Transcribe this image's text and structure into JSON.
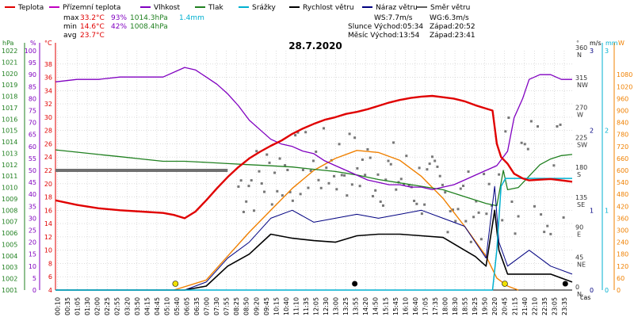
{
  "legend": [
    {
      "label": "Teplota",
      "color": "#e00000"
    },
    {
      "label": "Přízemní teplota",
      "color": "#c000c0"
    },
    {
      "label": "Vlhkost",
      "color": "#8000c0"
    },
    {
      "label": "Tlak",
      "color": "#208020"
    },
    {
      "label": "Srážky",
      "color": "#00b0d0"
    },
    {
      "label": "Rychlost větru",
      "color": "#000000"
    },
    {
      "label": "Náraz větru",
      "color": "#000080"
    },
    {
      "label": "Směr větru",
      "color": "#606060"
    }
  ],
  "stats": {
    "max_label": "max",
    "min_label": "min",
    "avg_label": "avg",
    "max_temp": "33.2°C",
    "max_hum": "93%",
    "max_press": "1014.3hPa",
    "max_rain": "1.4mm",
    "min_temp": "14.6°C",
    "min_hum": "42%",
    "min_press": "1008.4hPa",
    "avg_temp": "23.7°C"
  },
  "wind_info": {
    "ws": "WS:7.7m/s",
    "wg": "WG:6.3m/s"
  },
  "astro": {
    "sun_rise": "Slunce Východ:05:34",
    "sun_set": "Západ:20:52",
    "moon_rise": "Měsíc  Východ:13:54",
    "moon_set": "Západ:23:41"
  },
  "date": "28.7.2020",
  "axis_labels": {
    "hpa": "hPa",
    "pct": "%",
    "degc": "°C",
    "deg": "°",
    "ms": "m/s",
    "mm": "mm",
    "wm2": "W",
    "time": "čas"
  },
  "colors": {
    "temp": "#e00000",
    "dew": "#c000c0",
    "hum": "#8000c0",
    "press": "#208020",
    "rain": "#00b0d0",
    "wind": "#000000",
    "gust": "#000080",
    "dir": "#707070",
    "solar": "#f08000",
    "grid": "#c8c8c8"
  },
  "chart_data": {
    "type": "line",
    "x_unit": "time (HH:MM), 28.7.2020",
    "x_ticks": [
      "00:10",
      "00:35",
      "01:05",
      "01:30",
      "02:00",
      "02:25",
      "02:55",
      "03:20",
      "03:50",
      "04:15",
      "04:45",
      "05:10",
      "05:40",
      "06:05",
      "06:35",
      "07:00",
      "07:30",
      "07:55",
      "08:25",
      "08:50",
      "09:20",
      "09:45",
      "10:15",
      "10:40",
      "11:10",
      "11:35",
      "12:05",
      "12:30",
      "13:00",
      "13:25",
      "13:55",
      "14:20",
      "14:50",
      "15:15",
      "15:45",
      "16:10",
      "16:40",
      "17:05",
      "17:35",
      "18:00",
      "18:30",
      "18:55",
      "19:25",
      "19:50",
      "20:20",
      "20:45",
      "21:15",
      "21:40",
      "22:10",
      "22:35",
      "23:05",
      "23:35"
    ],
    "axes": {
      "pressure_hpa": {
        "min": 1001,
        "max": 1022,
        "ticks": [
          "1001",
          "1002",
          "1003",
          "1004",
          "1005",
          "1006",
          "1007",
          "1008",
          "1009",
          "1010",
          "1011",
          "1012",
          "1013",
          "1014",
          "1015",
          "1016",
          "1017",
          "1018",
          "1019",
          "1020",
          "1021",
          "1022"
        ]
      },
      "humidity_pct": {
        "min": 0,
        "max": 100,
        "ticks": [
          "0",
          "5",
          "10",
          "15",
          "20",
          "25",
          "30",
          "35",
          "40",
          "45",
          "50",
          "55",
          "60",
          "65",
          "70",
          "75",
          "80",
          "85",
          "90",
          "95",
          "100"
        ]
      },
      "temp_c": {
        "min": 4,
        "max": 40,
        "ticks": [
          "4",
          "6",
          "8",
          "10",
          "12",
          "14",
          "16",
          "18",
          "20",
          "22",
          "24",
          "26",
          "28",
          "30",
          "32",
          "34",
          "36",
          "38"
        ]
      },
      "dir_deg": {
        "min": 0,
        "max": 360,
        "ticks": [
          "0",
          "45",
          "90",
          "135",
          "180",
          "225",
          "270",
          "315",
          "360"
        ],
        "labels": [
          "N",
          "NE",
          "E",
          "SE",
          "S",
          "SW",
          "W",
          "NW",
          "N"
        ]
      },
      "wind_ms": {
        "min": 0,
        "max": 3,
        "ticks": [
          "0",
          "1",
          "2",
          "3"
        ]
      },
      "rain_mm": {
        "min": 0,
        "max": 3,
        "ticks": [
          "0",
          "1",
          "2",
          "3"
        ]
      },
      "solar_w": {
        "min": 0,
        "max": 1200,
        "ticks": [
          "0",
          "60",
          "120",
          "180",
          "240",
          "300",
          "360",
          "420",
          "480",
          "540",
          "600",
          "660",
          "720",
          "780",
          "840",
          "900",
          "960",
          "1020",
          "1080"
        ]
      }
    },
    "series": [
      {
        "name": "Teplota",
        "unit": "°C",
        "points": [
          [
            0,
            17.5
          ],
          [
            1,
            16.8
          ],
          [
            2,
            16.3
          ],
          [
            3,
            16.0
          ],
          [
            4,
            15.8
          ],
          [
            5,
            15.6
          ],
          [
            5.5,
            15.3
          ],
          [
            6,
            14.8
          ],
          [
            6.5,
            15.8
          ],
          [
            7,
            17.5
          ],
          [
            7.5,
            19.3
          ],
          [
            8,
            21.0
          ],
          [
            8.5,
            22.5
          ],
          [
            9,
            23.8
          ],
          [
            9.5,
            24.8
          ],
          [
            10,
            25.7
          ],
          [
            10.5,
            26.5
          ],
          [
            11,
            27.5
          ],
          [
            11.5,
            28.3
          ],
          [
            12,
            29.0
          ],
          [
            12.5,
            29.6
          ],
          [
            13,
            30.0
          ],
          [
            13.5,
            30.5
          ],
          [
            14,
            30.8
          ],
          [
            14.5,
            31.2
          ],
          [
            15,
            31.7
          ],
          [
            15.5,
            32.2
          ],
          [
            16,
            32.6
          ],
          [
            16.5,
            32.9
          ],
          [
            17,
            33.1
          ],
          [
            17.5,
            33.2
          ],
          [
            18,
            33.0
          ],
          [
            18.5,
            32.8
          ],
          [
            19,
            32.4
          ],
          [
            19.5,
            31.8
          ],
          [
            20,
            31.3
          ],
          [
            20.3,
            31.0
          ],
          [
            20.5,
            26.0
          ],
          [
            20.7,
            24.0
          ],
          [
            21,
            23.0
          ],
          [
            21.3,
            21.5
          ],
          [
            21.7,
            20.8
          ],
          [
            22,
            20.5
          ],
          [
            22.5,
            20.6
          ],
          [
            23,
            20.7
          ],
          [
            23.5,
            20.5
          ],
          [
            24,
            20.3
          ]
        ]
      },
      {
        "name": "Vlhkost",
        "unit": "%",
        "points": [
          [
            0,
            87
          ],
          [
            1,
            88
          ],
          [
            2,
            88
          ],
          [
            3,
            89
          ],
          [
            4,
            89
          ],
          [
            5,
            89
          ],
          [
            6,
            93
          ],
          [
            6.5,
            92
          ],
          [
            7,
            89
          ],
          [
            7.5,
            86
          ],
          [
            8,
            82
          ],
          [
            8.5,
            77
          ],
          [
            9,
            71
          ],
          [
            9.5,
            67
          ],
          [
            10,
            63
          ],
          [
            10.5,
            61
          ],
          [
            11,
            60
          ],
          [
            11.5,
            58
          ],
          [
            12,
            57
          ],
          [
            12.5,
            54
          ],
          [
            13,
            52
          ],
          [
            13.5,
            50
          ],
          [
            14,
            48
          ],
          [
            14.5,
            46
          ],
          [
            15,
            45
          ],
          [
            15.5,
            44
          ],
          [
            16,
            44
          ],
          [
            16.5,
            43
          ],
          [
            17,
            43
          ],
          [
            17.5,
            42
          ],
          [
            18,
            43
          ],
          [
            18.5,
            44
          ],
          [
            19,
            46
          ],
          [
            19.5,
            48
          ],
          [
            20,
            50
          ],
          [
            20.5,
            52
          ],
          [
            21,
            58
          ],
          [
            21.3,
            72
          ],
          [
            21.7,
            80
          ],
          [
            22,
            88
          ],
          [
            22.5,
            90
          ],
          [
            23,
            90
          ],
          [
            23.5,
            88
          ],
          [
            24,
            88
          ]
        ]
      },
      {
        "name": "Tlak",
        "unit": "hPa",
        "points": [
          [
            0,
            1013.3
          ],
          [
            1,
            1013.1
          ],
          [
            2,
            1012.9
          ],
          [
            3,
            1012.7
          ],
          [
            4,
            1012.5
          ],
          [
            5,
            1012.3
          ],
          [
            6,
            1012.3
          ],
          [
            7,
            1012.2
          ],
          [
            8,
            1012.1
          ],
          [
            9,
            1012.0
          ],
          [
            10,
            1011.9
          ],
          [
            11,
            1011.8
          ],
          [
            12,
            1011.6
          ],
          [
            13,
            1011.4
          ],
          [
            14,
            1011.1
          ],
          [
            15,
            1010.7
          ],
          [
            16,
            1010.4
          ],
          [
            17,
            1010.1
          ],
          [
            18,
            1009.8
          ],
          [
            19,
            1009.2
          ],
          [
            20,
            1008.6
          ],
          [
            20.5,
            1008.4
          ],
          [
            20.8,
            1011.5
          ],
          [
            21,
            1009.8
          ],
          [
            21.5,
            1010.0
          ],
          [
            22,
            1011.0
          ],
          [
            22.5,
            1012.0
          ],
          [
            23,
            1012.5
          ],
          [
            23.5,
            1012.8
          ],
          [
            24,
            1012.9
          ]
        ]
      },
      {
        "name": "Srážky",
        "unit": "mm",
        "points": [
          [
            0,
            0
          ],
          [
            20.3,
            0
          ],
          [
            20.5,
            0.5
          ],
          [
            20.7,
            1.3
          ],
          [
            20.9,
            1.4
          ],
          [
            24,
            1.4
          ]
        ]
      },
      {
        "name": "Rychlost větru",
        "unit": "m/s",
        "points": [
          [
            0,
            0
          ],
          [
            6,
            0
          ],
          [
            7,
            0.05
          ],
          [
            8,
            0.3
          ],
          [
            9,
            0.45
          ],
          [
            10,
            0.7
          ],
          [
            11,
            0.65
          ],
          [
            12,
            0.62
          ],
          [
            13,
            0.6
          ],
          [
            14,
            0.68
          ],
          [
            15,
            0.7
          ],
          [
            16,
            0.7
          ],
          [
            17,
            0.68
          ],
          [
            18,
            0.66
          ],
          [
            19,
            0.5
          ],
          [
            19.5,
            0.42
          ],
          [
            20,
            0.3
          ],
          [
            20.4,
            1.0
          ],
          [
            20.6,
            0.5
          ],
          [
            21,
            0.2
          ],
          [
            22,
            0.2
          ],
          [
            23,
            0.2
          ],
          [
            24,
            0.1
          ]
        ]
      },
      {
        "name": "Náraz větru",
        "unit": "m/s",
        "points": [
          [
            0,
            0
          ],
          [
            6,
            0
          ],
          [
            7,
            0.1
          ],
          [
            8,
            0.4
          ],
          [
            9,
            0.6
          ],
          [
            10,
            0.9
          ],
          [
            11,
            1.0
          ],
          [
            12,
            0.85
          ],
          [
            13,
            0.9
          ],
          [
            14,
            0.95
          ],
          [
            15,
            0.9
          ],
          [
            16,
            0.95
          ],
          [
            17,
            1.0
          ],
          [
            18,
            0.9
          ],
          [
            19,
            0.8
          ],
          [
            19.5,
            0.6
          ],
          [
            20,
            0.4
          ],
          [
            20.4,
            1.3
          ],
          [
            20.6,
            0.6
          ],
          [
            21,
            0.3
          ],
          [
            22,
            0.5
          ],
          [
            23,
            0.3
          ],
          [
            24,
            0.2
          ]
        ]
      },
      {
        "name": "Směr větru",
        "unit": "°",
        "points": [
          [
            0,
            180
          ],
          [
            8,
            180
          ]
        ]
      },
      {
        "name": "Solar",
        "unit": "W/m²",
        "points": [
          [
            5.5,
            0
          ],
          [
            7,
            50
          ],
          [
            8,
            170
          ],
          [
            9,
            290
          ],
          [
            10,
            400
          ],
          [
            11,
            510
          ],
          [
            12,
            600
          ],
          [
            13,
            660
          ],
          [
            14,
            700
          ],
          [
            15,
            690
          ],
          [
            16,
            650
          ],
          [
            17,
            570
          ],
          [
            18,
            460
          ],
          [
            19,
            320
          ],
          [
            20,
            170
          ],
          [
            20.5,
            60
          ],
          [
            21,
            20
          ],
          [
            21.5,
            0
          ]
        ]
      }
    ]
  }
}
